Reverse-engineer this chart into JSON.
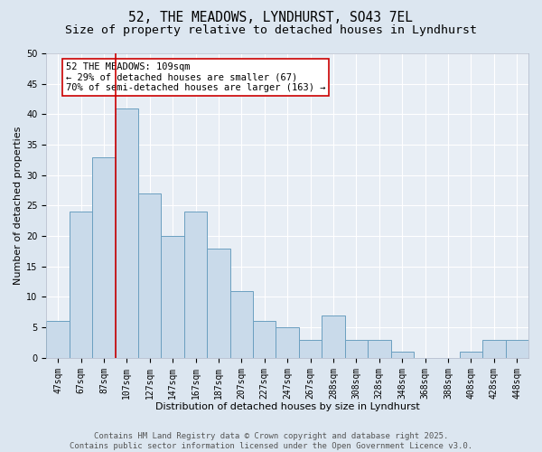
{
  "title": "52, THE MEADOWS, LYNDHURST, SO43 7EL",
  "subtitle": "Size of property relative to detached houses in Lyndhurst",
  "xlabel": "Distribution of detached houses by size in Lyndhurst",
  "ylabel": "Number of detached properties",
  "footer_line1": "Contains HM Land Registry data © Crown copyright and database right 2025.",
  "footer_line2": "Contains public sector information licensed under the Open Government Licence v3.0.",
  "bar_labels": [
    "47sqm",
    "67sqm",
    "87sqm",
    "107sqm",
    "127sqm",
    "147sqm",
    "167sqm",
    "187sqm",
    "207sqm",
    "227sqm",
    "247sqm",
    "267sqm",
    "288sqm",
    "308sqm",
    "328sqm",
    "348sqm",
    "368sqm",
    "388sqm",
    "408sqm",
    "428sqm",
    "448sqm"
  ],
  "bar_values": [
    6,
    24,
    33,
    41,
    27,
    20,
    24,
    18,
    11,
    6,
    5,
    3,
    7,
    3,
    3,
    1,
    0,
    0,
    1,
    3,
    3
  ],
  "bar_color": "#c9daea",
  "bar_edge_color": "#6b9fc0",
  "vline_index": 3,
  "vline_color": "#cc0000",
  "annotation_text": "52 THE MEADOWS: 109sqm\n← 29% of detached houses are smaller (67)\n70% of semi-detached houses are larger (163) →",
  "annotation_box_facecolor": "#ffffff",
  "annotation_box_edgecolor": "#cc0000",
  "ylim": [
    0,
    50
  ],
  "yticks": [
    0,
    5,
    10,
    15,
    20,
    25,
    30,
    35,
    40,
    45,
    50
  ],
  "background_color": "#dce6f0",
  "plot_bg_color": "#e8eef5",
  "grid_color": "#ffffff",
  "title_fontsize": 10.5,
  "subtitle_fontsize": 9.5,
  "axis_label_fontsize": 8,
  "tick_fontsize": 7,
  "annotation_fontsize": 7.5,
  "footer_fontsize": 6.5
}
